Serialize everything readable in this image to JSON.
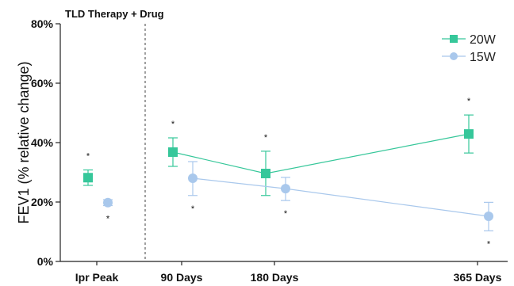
{
  "chart_data": {
    "type": "scatter",
    "annotation": "TLD Therapy + Drug",
    "ylabel": "FEV1 (% relative change)",
    "xlabel": "",
    "ylim": [
      0,
      80
    ],
    "yticks": [
      "0%",
      "20%",
      "40%",
      "60%",
      "80%"
    ],
    "categories": [
      "Ipr Peak",
      "90 Days",
      "180 Days",
      "365 Days"
    ],
    "legend_position": "top-right",
    "series": [
      {
        "name": "20W",
        "color": "#36c79a",
        "marker": "square",
        "values": [
          28.2,
          36.8,
          29.6,
          42.9
        ],
        "err_low": [
          25.6,
          32.0,
          22.2,
          36.5
        ],
        "err_high": [
          30.8,
          41.6,
          37.1,
          49.3
        ],
        "significance": [
          "*",
          "*",
          "*",
          "*"
        ],
        "connected_from_index": 1
      },
      {
        "name": "15W",
        "color": "#a9c8ec",
        "marker": "circle",
        "values": [
          19.8,
          28.0,
          24.5,
          15.2
        ],
        "err_low": [
          18.8,
          22.2,
          20.5,
          10.3
        ],
        "err_high": [
          20.8,
          33.6,
          28.3,
          19.9
        ],
        "significance": [
          "*",
          "*",
          "*",
          "*"
        ],
        "connected_from_index": 1
      }
    ]
  }
}
